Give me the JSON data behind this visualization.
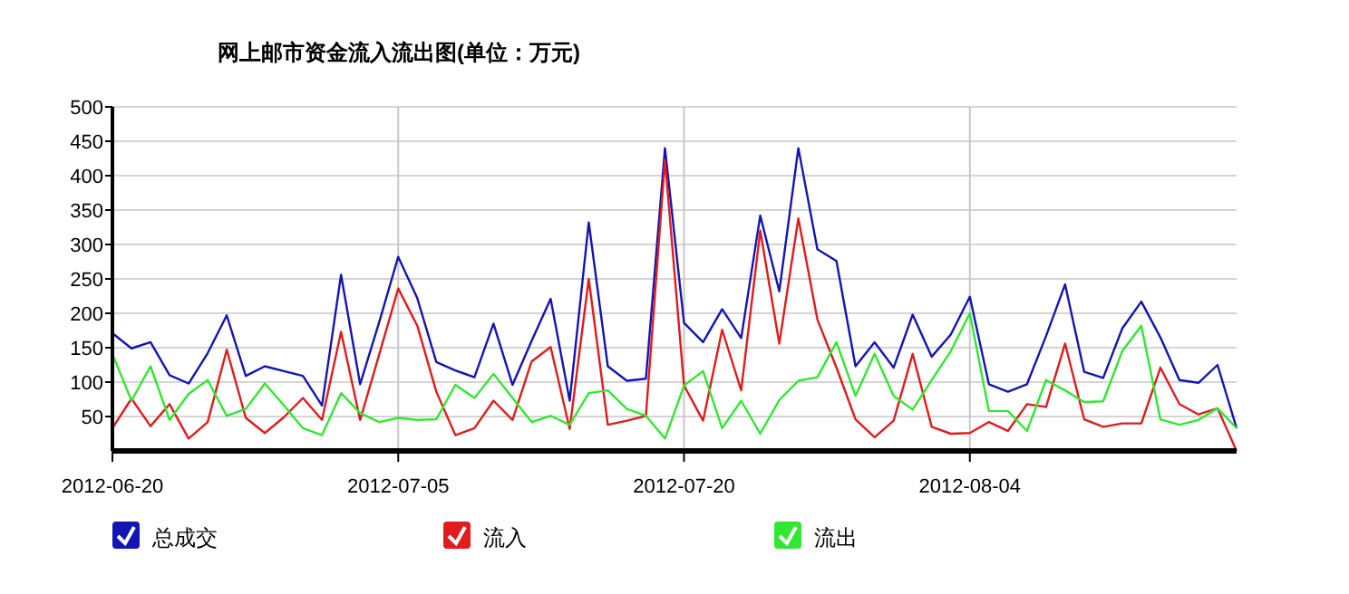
{
  "chart_data": {
    "type": "line",
    "title": "网上邮市资金流入流出图(单位：万元)",
    "x": [
      "2012-06-20",
      "2012-06-21",
      "2012-06-22",
      "2012-06-23",
      "2012-06-24",
      "2012-06-25",
      "2012-06-26",
      "2012-06-27",
      "2012-06-28",
      "2012-06-29",
      "2012-06-30",
      "2012-07-01",
      "2012-07-02",
      "2012-07-03",
      "2012-07-04",
      "2012-07-05",
      "2012-07-06",
      "2012-07-07",
      "2012-07-08",
      "2012-07-09",
      "2012-07-10",
      "2012-07-11",
      "2012-07-12",
      "2012-07-13",
      "2012-07-14",
      "2012-07-15",
      "2012-07-16",
      "2012-07-17",
      "2012-07-18",
      "2012-07-19",
      "2012-07-20",
      "2012-07-21",
      "2012-07-22",
      "2012-07-23",
      "2012-07-24",
      "2012-07-25",
      "2012-07-26",
      "2012-07-27",
      "2012-07-28",
      "2012-07-29",
      "2012-07-30",
      "2012-07-31",
      "2012-08-01",
      "2012-08-02",
      "2012-08-03",
      "2012-08-04",
      "2012-08-05",
      "2012-08-06",
      "2012-08-07",
      "2012-08-08",
      "2012-08-09",
      "2012-08-10",
      "2012-08-11",
      "2012-08-12",
      "2012-08-13",
      "2012-08-14",
      "2012-08-15",
      "2012-08-16",
      "2012-08-17",
      "2012-08-18"
    ],
    "series": [
      {
        "name": "总成交",
        "color": "#1414b4",
        "values": [
          171,
          149,
          158,
          110,
          98,
          142,
          197,
          109,
          123,
          116,
          109,
          66,
          256,
          97,
          187,
          282,
          222,
          129,
          117,
          107,
          185,
          96,
          160,
          221,
          73,
          332,
          123,
          102,
          105,
          440,
          186,
          158,
          206,
          164,
          342,
          232,
          440,
          293,
          276,
          123,
          158,
          121,
          198,
          137,
          169,
          224,
          97,
          86,
          97,
          167,
          242,
          115,
          106,
          178,
          217,
          165,
          103,
          99,
          125,
          33
        ]
      },
      {
        "name": "流入",
        "color": "#e01c1c",
        "values": [
          33,
          76,
          36,
          68,
          18,
          42,
          147,
          48,
          26,
          49,
          77,
          45,
          173,
          45,
          140,
          236,
          182,
          86,
          23,
          33,
          73,
          45,
          130,
          151,
          32,
          250,
          38,
          44,
          51,
          423,
          95,
          44,
          176,
          88,
          320,
          156,
          338,
          191,
          121,
          46,
          20,
          44,
          141,
          35,
          25,
          26,
          42,
          29,
          68,
          64,
          156,
          46,
          35,
          40,
          40,
          121,
          68,
          53,
          62,
          0
        ]
      },
      {
        "name": "流出",
        "color": "#33e633",
        "values": [
          141,
          73,
          123,
          45,
          83,
          103,
          51,
          61,
          98,
          66,
          33,
          23,
          84,
          55,
          42,
          48,
          45,
          46,
          96,
          77,
          112,
          77,
          42,
          51,
          38,
          84,
          88,
          61,
          51,
          18,
          95,
          116,
          33,
          73,
          25,
          74,
          102,
          107,
          158,
          80,
          141,
          80,
          60,
          103,
          145,
          200,
          58,
          58,
          29,
          103,
          88,
          71,
          72,
          145,
          182,
          46,
          38,
          45,
          62,
          33
        ]
      }
    ],
    "xlim": [
      "2012-06-20",
      "2012-08-18"
    ],
    "xticks": [
      "2012-06-20",
      "2012-07-05",
      "2012-07-20",
      "2012-08-04"
    ],
    "ylim": [
      0,
      500
    ],
    "yticks": [
      50,
      100,
      150,
      200,
      250,
      300,
      350,
      400,
      450,
      500
    ],
    "grid": true,
    "legend": "bottom"
  }
}
